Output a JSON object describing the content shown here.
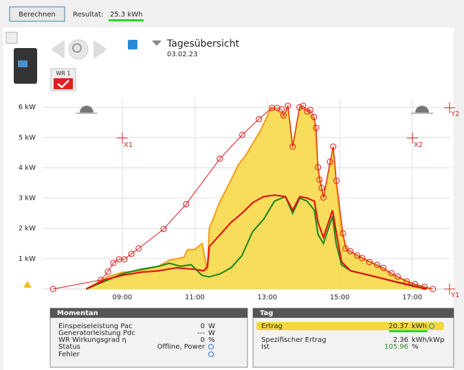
{
  "toolbar": {
    "button": "Berechnen",
    "result_label": "Resultat:",
    "result_value": "25.3 kWh"
  },
  "header": {
    "device": "WR 1",
    "title": "Tagesübersicht",
    "date": "03.02.23"
  },
  "chart_data": {
    "type": "line",
    "xlim": [
      6.8,
      18.05
    ],
    "xticks": [
      {
        "value": 9,
        "label": "09:00"
      },
      {
        "value": 11,
        "label": "11:00"
      },
      {
        "value": 13,
        "label": "13:00"
      },
      {
        "value": 15,
        "label": "15:00"
      },
      {
        "value": 17,
        "label": "17:00"
      }
    ],
    "ylim": [
      0,
      6.3
    ],
    "yticks": [
      {
        "value": 1,
        "label": "1 kW"
      },
      {
        "value": 2,
        "label": "2 kW"
      },
      {
        "value": 3,
        "label": "3 kW"
      },
      {
        "value": 4,
        "label": "4 kW"
      },
      {
        "value": 5,
        "label": "5 kW"
      },
      {
        "value": 6,
        "label": "6 kW"
      }
    ],
    "grid": true,
    "annotations": [
      "X1",
      "X2",
      "Y1",
      "Y2"
    ],
    "series": [
      {
        "color": "#f0a020",
        "fill": "#f7d84a",
        "area": true,
        "x": [
          8.0,
          8.3,
          8.6,
          9.0,
          9.5,
          10.0,
          10.3,
          10.5,
          10.7,
          10.8,
          11.0,
          11.2,
          11.35,
          11.4,
          11.7,
          12.0,
          12.2,
          12.4,
          12.6,
          12.8,
          13.0,
          13.1,
          13.3,
          13.45,
          13.57,
          13.7,
          13.9,
          14.1,
          14.3,
          14.4,
          14.55,
          14.75,
          14.82,
          14.9,
          15.05,
          15.2,
          15.5,
          16.0,
          16.5,
          17.0,
          17.3,
          17.5
        ],
        "values": [
          0,
          0.2,
          0.4,
          0.55,
          0.6,
          0.75,
          0.95,
          1.0,
          1.05,
          1.3,
          1.3,
          1.5,
          0.6,
          2.0,
          2.9,
          3.6,
          4.1,
          4.4,
          4.8,
          5.2,
          5.7,
          5.98,
          5.9,
          5.7,
          6.0,
          4.7,
          6.0,
          5.9,
          5.6,
          4.0,
          3.0,
          4.2,
          4.7,
          3.5,
          1.9,
          1.3,
          1.1,
          0.8,
          0.45,
          0.18,
          0.05,
          0
        ]
      },
      {
        "color": "#1e8a1e",
        "area": false,
        "x": [
          8.0,
          8.5,
          9.0,
          9.5,
          10.0,
          10.3,
          10.6,
          10.9,
          11.2,
          11.4,
          11.7,
          12.0,
          12.3,
          12.6,
          12.9,
          13.2,
          13.5,
          13.7,
          13.9,
          14.1,
          14.3,
          14.4,
          14.55,
          14.8,
          14.9,
          15.05,
          15.3,
          16.0,
          16.5,
          17.0,
          17.4
        ],
        "values": [
          0,
          0.25,
          0.5,
          0.65,
          0.75,
          0.85,
          0.75,
          0.8,
          0.45,
          0.4,
          0.5,
          0.7,
          1.1,
          1.9,
          2.3,
          2.9,
          3.05,
          2.5,
          3.0,
          2.9,
          2.6,
          1.8,
          1.5,
          2.4,
          1.5,
          0.8,
          0.6,
          0.4,
          0.25,
          0.12,
          0
        ]
      },
      {
        "color": "#e01010",
        "area": false,
        "x": [
          8.0,
          8.5,
          9.0,
          9.5,
          10.0,
          10.5,
          11.0,
          11.25,
          11.35,
          11.4,
          11.7,
          12.0,
          12.3,
          12.6,
          12.9,
          13.2,
          13.5,
          13.7,
          13.9,
          14.1,
          14.3,
          14.4,
          14.55,
          14.8,
          14.9,
          15.05,
          15.3,
          16.0,
          16.5,
          17.0,
          17.4
        ],
        "values": [
          0,
          0.3,
          0.45,
          0.55,
          0.6,
          0.7,
          0.65,
          0.6,
          0.75,
          1.4,
          1.8,
          2.2,
          2.5,
          2.85,
          3.05,
          3.1,
          3.05,
          2.6,
          3.05,
          3.0,
          2.9,
          2.2,
          1.7,
          2.6,
          1.9,
          0.9,
          0.6,
          0.4,
          0.25,
          0.1,
          0
        ]
      },
      {
        "color": "#e01010",
        "area": false,
        "markers": true,
        "x": [
          7.09,
          8.41,
          8.6,
          8.75,
          8.91,
          9.06,
          9.25,
          9.45,
          10.14,
          10.76,
          11.69,
          12.31,
          12.77,
          13.13,
          13.27,
          13.4,
          13.45,
          13.57,
          13.7,
          13.89,
          13.99,
          14.1,
          14.19,
          14.29,
          14.35,
          14.4,
          14.44,
          14.5,
          14.55,
          14.73,
          14.82,
          14.91,
          15.09,
          15.16,
          15.29,
          15.48,
          15.62,
          15.82,
          16.03,
          16.2,
          16.43,
          16.6,
          16.85,
          17.08,
          17.34,
          17.57
        ],
        "values": [
          0,
          0.3,
          0.57,
          0.86,
          0.98,
          0.98,
          1.16,
          1.34,
          1.98,
          2.8,
          4.3,
          5.09,
          5.61,
          5.98,
          5.98,
          5.93,
          5.73,
          6.05,
          4.7,
          6.0,
          6.05,
          5.86,
          5.91,
          5.68,
          5.32,
          4.02,
          3.61,
          3.34,
          3.02,
          4.2,
          4.7,
          3.57,
          1.84,
          1.34,
          1.25,
          1.11,
          1.02,
          0.89,
          0.8,
          0.7,
          0.52,
          0.41,
          0.25,
          0.16,
          0.07,
          0
        ]
      }
    ]
  },
  "panels": [
    {
      "title": "Momentan",
      "rows": [
        {
          "label": "Einspeiseleistung Pac",
          "value": "0",
          "unit": "W"
        },
        {
          "label": "Generatorleistung Pdc",
          "value": "---",
          "unit": "W"
        },
        {
          "label": "WR Wirkungsgrad η",
          "value": "0",
          "unit": "%"
        },
        {
          "label": "Status",
          "value": "Offline, Power"
        },
        {
          "label": "Fehler"
        }
      ]
    },
    {
      "title": "Tag",
      "rows": [
        {
          "label": "Ertrag",
          "value": "20.37",
          "unit": "kWh"
        },
        {
          "label": "Spezifischer Ertrag",
          "value": "2.36",
          "unit": "kWh/kWp"
        },
        {
          "label": "Ist",
          "value": "105.96",
          "unit": "%"
        }
      ]
    }
  ]
}
